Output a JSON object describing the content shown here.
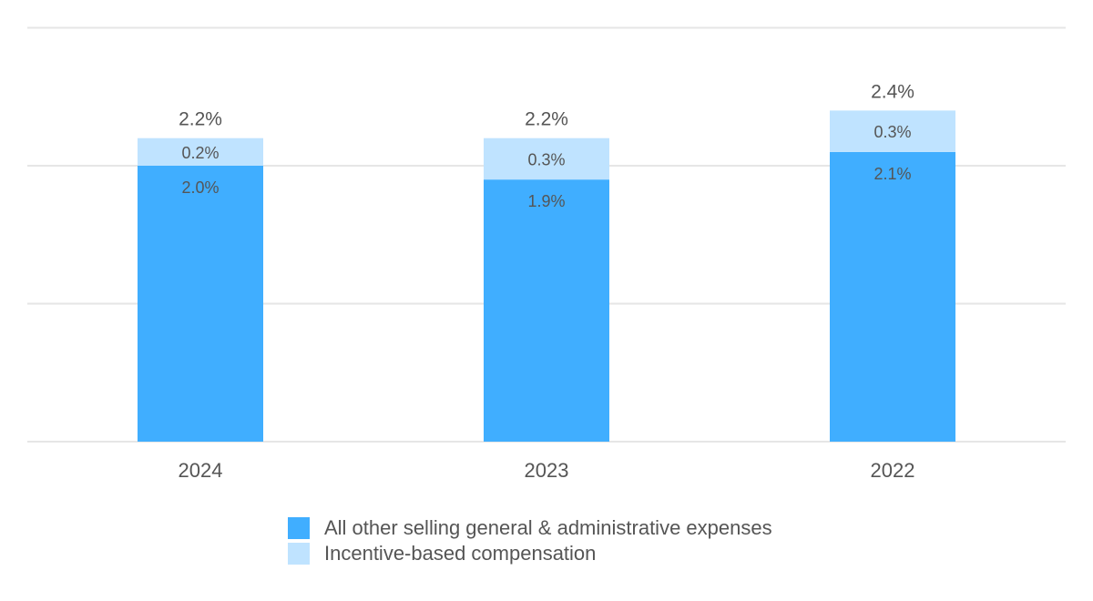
{
  "chart_data": {
    "type": "bar",
    "stacked": true,
    "categories": [
      "2024",
      "2023",
      "2022"
    ],
    "series": [
      {
        "name": "All other selling general & administrative expenses",
        "values": [
          2.0,
          1.9,
          2.1
        ],
        "labels": [
          "2.0%",
          "1.9%",
          "2.1%"
        ],
        "color": "#40AEFF"
      },
      {
        "name": "Incentive-based compensation",
        "values": [
          0.2,
          0.3,
          0.3
        ],
        "labels": [
          "0.2%",
          "0.3%",
          "0.3%"
        ],
        "color": "#BFE3FF"
      }
    ],
    "totals": [
      "2.2%",
      "2.2%",
      "2.4%"
    ],
    "ylim": [
      0,
      3
    ],
    "grid": true,
    "grid_step": 1,
    "legend_position": "bottom"
  }
}
